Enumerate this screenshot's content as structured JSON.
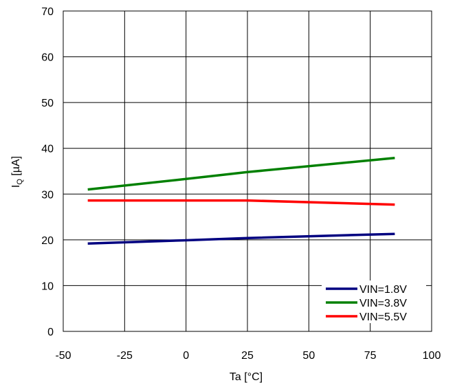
{
  "chart_data": {
    "type": "line",
    "title": "",
    "xlabel": "Ta [°C]",
    "ylabel_main": "I",
    "ylabel_sub": "Q",
    "ylabel_unit": " [µA]",
    "xlim": [
      -50,
      100
    ],
    "ylim": [
      0,
      70
    ],
    "xticks": [
      -50,
      -25,
      0,
      25,
      50,
      75,
      100
    ],
    "yticks": [
      0,
      10,
      20,
      30,
      40,
      50,
      60,
      70
    ],
    "grid": true,
    "legend_position": "bottom-right",
    "series": [
      {
        "name": "VIN=1.8V",
        "color": "#000080",
        "x": [
          -40,
          0,
          25,
          85
        ],
        "y": [
          19.2,
          19.9,
          20.4,
          21.3
        ]
      },
      {
        "name": "VIN=3.8V",
        "color": "#008000",
        "x": [
          -40,
          0,
          25,
          85
        ],
        "y": [
          31.0,
          33.3,
          34.8,
          37.9
        ]
      },
      {
        "name": "VIN=5.5V",
        "color": "#ff0000",
        "x": [
          -40,
          0,
          25,
          85
        ],
        "y": [
          28.6,
          28.6,
          28.6,
          27.7
        ]
      }
    ]
  }
}
